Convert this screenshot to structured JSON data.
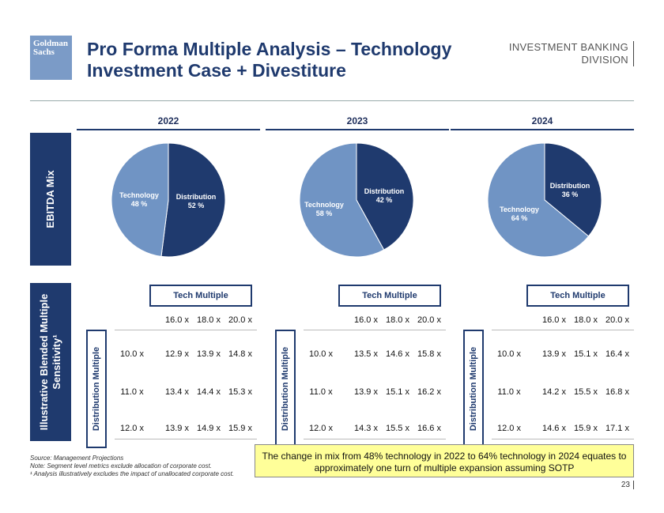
{
  "header": {
    "logo_line1": "Goldman",
    "logo_line2": "Sachs",
    "title_line1": "Pro Forma Multiple Analysis – Technology",
    "title_line2": "Investment Case + Divestiture",
    "division_line1": "INVESTMENT BANKING",
    "division_line2": "DIVISION"
  },
  "sections": {
    "ebitda_label": "EBITDA Mix",
    "sensitivity_label_line1": "Illustrative Blended Multiple",
    "sensitivity_label_line2": "Sensitivity¹"
  },
  "colors": {
    "distribution": "#1f3a6e",
    "technology": "#7094c4"
  },
  "chart_data": [
    {
      "type": "pie",
      "title": "2022",
      "slices": [
        {
          "label": "Distribution",
          "value": 52,
          "value_label": "52 %"
        },
        {
          "label": "Technology",
          "value": 48,
          "value_label": "48 %"
        }
      ]
    },
    {
      "type": "pie",
      "title": "2023",
      "slices": [
        {
          "label": "Distribution",
          "value": 42,
          "value_label": "42 %"
        },
        {
          "label": "Technology",
          "value": 58,
          "value_label": "58 %"
        }
      ]
    },
    {
      "type": "pie",
      "title": "2024",
      "slices": [
        {
          "label": "Distribution",
          "value": 36,
          "value_label": "36 %"
        },
        {
          "label": "Technology",
          "value": 64,
          "value_label": "64 %"
        }
      ]
    }
  ],
  "sensitivity_tables": [
    {
      "year": "2022",
      "tech_header": "Tech Multiple",
      "dist_header": "Distribution Multiple",
      "columns": [
        "16.0 x",
        "18.0 x",
        "20.0 x"
      ],
      "rows": [
        {
          "label": "10.0 x",
          "values": [
            "12.9 x",
            "13.9 x",
            "14.8 x"
          ]
        },
        {
          "label": "11.0 x",
          "values": [
            "13.4 x",
            "14.4 x",
            "15.3 x"
          ]
        },
        {
          "label": "12.0 x",
          "values": [
            "13.9 x",
            "14.9 x",
            "15.9 x"
          ]
        }
      ]
    },
    {
      "year": "2023",
      "tech_header": "Tech Multiple",
      "dist_header": "Distribution Multiple",
      "columns": [
        "16.0 x",
        "18.0 x",
        "20.0 x"
      ],
      "rows": [
        {
          "label": "10.0 x",
          "values": [
            "13.5 x",
            "14.6 x",
            "15.8 x"
          ]
        },
        {
          "label": "11.0 x",
          "values": [
            "13.9 x",
            "15.1 x",
            "16.2 x"
          ]
        },
        {
          "label": "12.0 x",
          "values": [
            "14.3 x",
            "15.5 x",
            "16.6 x"
          ]
        }
      ]
    },
    {
      "year": "2024",
      "tech_header": "Tech Multiple",
      "dist_header": "Distribution Multiple",
      "columns": [
        "16.0 x",
        "18.0 x",
        "20.0 x"
      ],
      "rows": [
        {
          "label": "10.0 x",
          "values": [
            "13.9 x",
            "15.1 x",
            "16.4 x"
          ]
        },
        {
          "label": "11.0 x",
          "values": [
            "14.2 x",
            "15.5 x",
            "16.8 x"
          ]
        },
        {
          "label": "12.0 x",
          "values": [
            "14.6 x",
            "15.9 x",
            "17.1 x"
          ]
        }
      ]
    }
  ],
  "footnotes": {
    "source": "Source: Management Projections",
    "note": "Note: Segment level metrics exclude allocation of corporate cost.",
    "footnote1": "¹ Analysis illustratively excludes the impact of unallocated corporate cost."
  },
  "callout": "The change in mix from 48% technology in 2022 to 64% technology in 2024 equates to approximately one turn of multiple expansion assuming SOTP",
  "page_number": "23"
}
